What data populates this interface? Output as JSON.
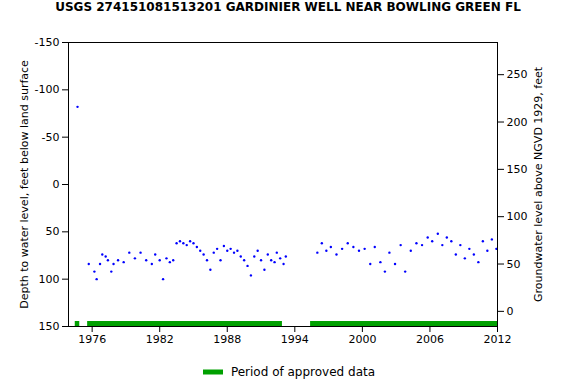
{
  "chart_data": {
    "type": "scatter",
    "title": "USGS 274151081513201 GARDINIER WELL NEAR BOWLING GREEN FL",
    "y_label": "Depth to water level, feet below land surface",
    "y2_label": "Groundwater level above NGVD 1929, feet",
    "x": [
      1974.7,
      1975.7,
      1976.2,
      1976.4,
      1976.7,
      1976.9,
      1977.2,
      1977.4,
      1977.7,
      1977.9,
      1978.3,
      1978.8,
      1979.3,
      1979.8,
      1980.3,
      1980.8,
      1981.3,
      1981.6,
      1982.0,
      1982.3,
      1982.6,
      1982.9,
      1983.2,
      1983.5,
      1983.8,
      1984.1,
      1984.4,
      1984.7,
      1985.0,
      1985.3,
      1985.6,
      1985.9,
      1986.2,
      1986.5,
      1986.8,
      1987.1,
      1987.4,
      1987.7,
      1988.0,
      1988.3,
      1988.6,
      1988.9,
      1989.2,
      1989.5,
      1989.8,
      1990.1,
      1990.4,
      1990.7,
      1991.0,
      1991.3,
      1991.6,
      1991.9,
      1992.2,
      1992.4,
      1992.7,
      1993.0,
      1993.2,
      1996.0,
      1996.4,
      1996.8,
      1997.2,
      1997.7,
      1998.2,
      1998.7,
      1999.2,
      1999.7,
      2000.2,
      2000.7,
      2001.1,
      2001.6,
      2002.0,
      2002.4,
      2002.9,
      2003.4,
      2003.8,
      2004.3,
      2004.8,
      2005.3,
      2005.8,
      2006.2,
      2006.7,
      2007.1,
      2007.5,
      2007.9,
      2008.3,
      2008.7,
      2009.1,
      2009.5,
      2009.9,
      2010.3,
      2010.7,
      2011.1,
      2011.5,
      2011.9
    ],
    "values": [
      -82,
      84,
      92,
      100,
      84,
      74,
      76,
      80,
      92,
      84,
      80,
      82,
      72,
      78,
      72,
      80,
      84,
      74,
      80,
      100,
      78,
      82,
      80,
      62,
      60,
      62,
      64,
      60,
      62,
      66,
      70,
      74,
      80,
      90,
      72,
      68,
      80,
      65,
      70,
      68,
      72,
      70,
      76,
      80,
      86,
      96,
      76,
      70,
      80,
      90,
      74,
      80,
      82,
      72,
      78,
      84,
      76,
      72,
      62,
      70,
      66,
      74,
      68,
      62,
      66,
      70,
      68,
      84,
      66,
      82,
      92,
      72,
      84,
      64,
      92,
      70,
      62,
      64,
      56,
      60,
      52,
      64,
      56,
      60,
      74,
      64,
      78,
      68,
      74,
      82,
      60,
      70,
      58,
      68
    ],
    "color": "#0000ff",
    "marker": "dot",
    "xlim": [
      1973.9,
      2012
    ],
    "xticks": [
      1976,
      1982,
      1988,
      1994,
      2000,
      2006,
      2012
    ],
    "ylim": [
      -150,
      150
    ],
    "yticks": [
      -150,
      -100,
      -50,
      0,
      50,
      100,
      150
    ],
    "y2lim": [
      -16,
      284
    ],
    "y2ticks": [
      0,
      50,
      100,
      150,
      200,
      250
    ],
    "legend": "bottom",
    "approved_periods": {
      "label": "Period of approved data",
      "color": "#00a000",
      "ranges": [
        [
          1974.5,
          1974.9
        ],
        [
          1975.6,
          1992.9
        ],
        [
          1995.4,
          2012
        ]
      ]
    }
  }
}
